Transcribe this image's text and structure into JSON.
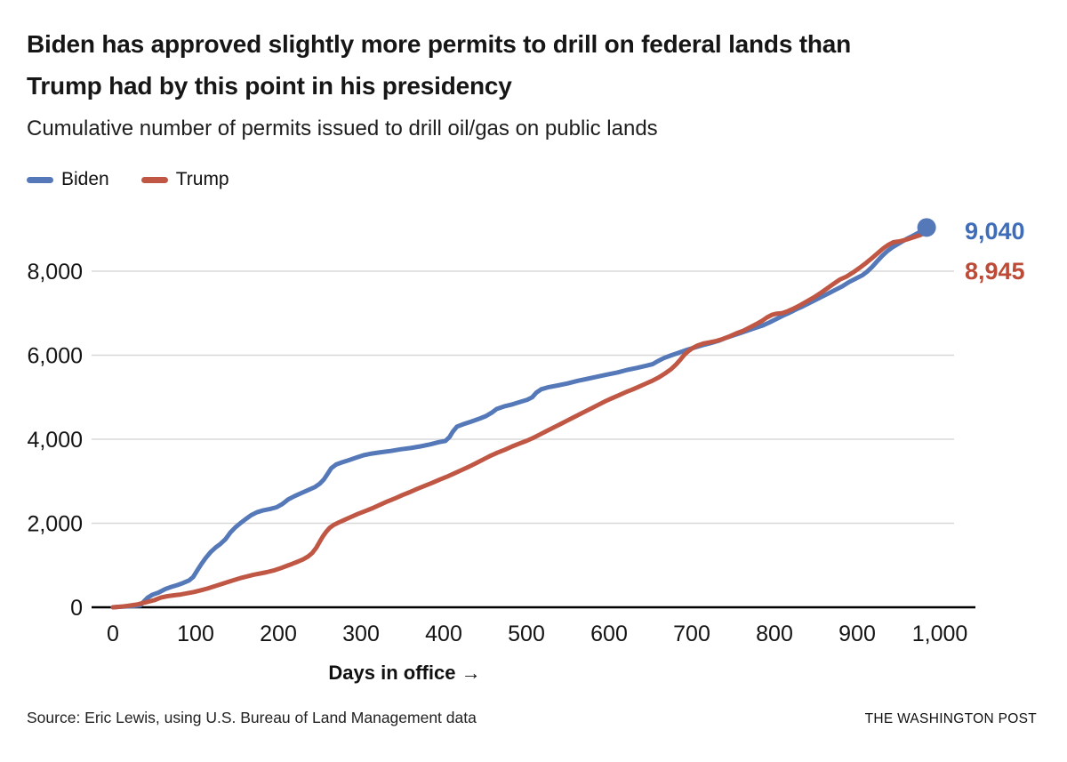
{
  "header": {
    "title": "Biden has approved slightly more permits to drill on federal lands than\nTrump had by this point in his presidency",
    "subtitle": "Cumulative number of permits issued to drill oil/gas on public lands"
  },
  "footer": {
    "source": "Source: Eric Lewis, using U.S. Bureau of Land Management data",
    "credit": "THE WASHINGTON POST"
  },
  "colors": {
    "gridline": "#d8d8d8",
    "axis": "#000000",
    "background": "#ffffff"
  },
  "chart_data": {
    "type": "line",
    "title": "Biden has approved slightly more permits to drill on federal lands than Trump had by this point in his presidency",
    "subtitle": "Cumulative number of permits issued to drill oil/gas on public lands",
    "xlabel": "Days in office →",
    "ylabel": "",
    "xlim": [
      0,
      1000
    ],
    "ylim": [
      0,
      9100
    ],
    "grid": "horizontal",
    "legend_position": "top-left",
    "x_ticks": [
      {
        "label": "0",
        "value": 0
      },
      {
        "label": "100",
        "value": 100
      },
      {
        "label": "200",
        "value": 200
      },
      {
        "label": "300",
        "value": 300
      },
      {
        "label": "400",
        "value": 400
      },
      {
        "label": "500",
        "value": 500
      },
      {
        "label": "600",
        "value": 600
      },
      {
        "label": "700",
        "value": 700
      },
      {
        "label": "800",
        "value": 800
      },
      {
        "label": "900",
        "value": 900
      },
      {
        "label": "1,000",
        "value": 1000
      }
    ],
    "y_ticks": [
      {
        "label": "0",
        "value": 0
      },
      {
        "label": "2,000",
        "value": 2000
      },
      {
        "label": "4,000",
        "value": 4000
      },
      {
        "label": "6,000",
        "value": 6000
      },
      {
        "label": "8,000",
        "value": 8000
      }
    ],
    "series": [
      {
        "name": "Biden",
        "color": "#5478b8",
        "label_color": "#3f6db8",
        "end_label": "9,040",
        "end_value": 9040,
        "end_dot": true,
        "points": [
          [
            0,
            0
          ],
          [
            12,
            15
          ],
          [
            24,
            30
          ],
          [
            33,
            45
          ],
          [
            37,
            130
          ],
          [
            42,
            230
          ],
          [
            48,
            300
          ],
          [
            55,
            350
          ],
          [
            60,
            400
          ],
          [
            64,
            440
          ],
          [
            70,
            480
          ],
          [
            78,
            530
          ],
          [
            85,
            580
          ],
          [
            92,
            640
          ],
          [
            97,
            720
          ],
          [
            102,
            880
          ],
          [
            107,
            1030
          ],
          [
            112,
            1170
          ],
          [
            118,
            1310
          ],
          [
            124,
            1420
          ],
          [
            130,
            1510
          ],
          [
            136,
            1620
          ],
          [
            142,
            1780
          ],
          [
            148,
            1900
          ],
          [
            154,
            2000
          ],
          [
            160,
            2090
          ],
          [
            167,
            2190
          ],
          [
            174,
            2260
          ],
          [
            182,
            2310
          ],
          [
            190,
            2340
          ],
          [
            198,
            2380
          ],
          [
            205,
            2460
          ],
          [
            212,
            2570
          ],
          [
            220,
            2650
          ],
          [
            228,
            2720
          ],
          [
            236,
            2790
          ],
          [
            244,
            2860
          ],
          [
            250,
            2940
          ],
          [
            255,
            3040
          ],
          [
            259,
            3160
          ],
          [
            264,
            3310
          ],
          [
            270,
            3400
          ],
          [
            277,
            3450
          ],
          [
            285,
            3500
          ],
          [
            294,
            3560
          ],
          [
            303,
            3620
          ],
          [
            313,
            3660
          ],
          [
            324,
            3690
          ],
          [
            336,
            3720
          ],
          [
            348,
            3760
          ],
          [
            360,
            3790
          ],
          [
            372,
            3830
          ],
          [
            384,
            3880
          ],
          [
            394,
            3930
          ],
          [
            402,
            3960
          ],
          [
            407,
            4050
          ],
          [
            411,
            4180
          ],
          [
            416,
            4300
          ],
          [
            424,
            4360
          ],
          [
            433,
            4420
          ],
          [
            442,
            4480
          ],
          [
            451,
            4550
          ],
          [
            458,
            4630
          ],
          [
            464,
            4720
          ],
          [
            473,
            4780
          ],
          [
            483,
            4830
          ],
          [
            493,
            4890
          ],
          [
            501,
            4940
          ],
          [
            507,
            5000
          ],
          [
            512,
            5110
          ],
          [
            518,
            5190
          ],
          [
            527,
            5240
          ],
          [
            538,
            5280
          ],
          [
            550,
            5330
          ],
          [
            562,
            5390
          ],
          [
            574,
            5440
          ],
          [
            586,
            5490
          ],
          [
            598,
            5540
          ],
          [
            610,
            5590
          ],
          [
            622,
            5650
          ],
          [
            634,
            5700
          ],
          [
            645,
            5750
          ],
          [
            653,
            5790
          ],
          [
            659,
            5860
          ],
          [
            666,
            5930
          ],
          [
            674,
            5990
          ],
          [
            683,
            6050
          ],
          [
            693,
            6120
          ],
          [
            703,
            6180
          ],
          [
            713,
            6240
          ],
          [
            723,
            6290
          ],
          [
            732,
            6340
          ],
          [
            741,
            6410
          ],
          [
            750,
            6470
          ],
          [
            759,
            6530
          ],
          [
            768,
            6590
          ],
          [
            777,
            6650
          ],
          [
            786,
            6710
          ],
          [
            794,
            6780
          ],
          [
            802,
            6860
          ],
          [
            810,
            6940
          ],
          [
            818,
            7010
          ],
          [
            826,
            7090
          ],
          [
            834,
            7160
          ],
          [
            842,
            7240
          ],
          [
            850,
            7320
          ],
          [
            858,
            7400
          ],
          [
            866,
            7480
          ],
          [
            874,
            7560
          ],
          [
            882,
            7640
          ],
          [
            890,
            7740
          ],
          [
            898,
            7820
          ],
          [
            906,
            7900
          ],
          [
            912,
            7990
          ],
          [
            918,
            8100
          ],
          [
            924,
            8230
          ],
          [
            930,
            8360
          ],
          [
            936,
            8470
          ],
          [
            942,
            8560
          ],
          [
            948,
            8630
          ],
          [
            954,
            8700
          ],
          [
            960,
            8770
          ],
          [
            966,
            8830
          ],
          [
            972,
            8890
          ],
          [
            978,
            8960
          ],
          [
            982,
            9010
          ],
          [
            984,
            9040
          ]
        ]
      },
      {
        "name": "Trump",
        "color": "#c05745",
        "label_color": "#bd4b38",
        "end_label": "8,945",
        "end_value": 8945,
        "end_dot": false,
        "points": [
          [
            0,
            0
          ],
          [
            10,
            15
          ],
          [
            20,
            40
          ],
          [
            30,
            70
          ],
          [
            40,
            120
          ],
          [
            50,
            170
          ],
          [
            58,
            230
          ],
          [
            66,
            265
          ],
          [
            74,
            285
          ],
          [
            82,
            305
          ],
          [
            90,
            335
          ],
          [
            98,
            365
          ],
          [
            106,
            405
          ],
          [
            114,
            445
          ],
          [
            122,
            495
          ],
          [
            130,
            545
          ],
          [
            138,
            595
          ],
          [
            146,
            645
          ],
          [
            154,
            695
          ],
          [
            162,
            735
          ],
          [
            170,
            775
          ],
          [
            178,
            805
          ],
          [
            186,
            835
          ],
          [
            194,
            875
          ],
          [
            202,
            925
          ],
          [
            210,
            985
          ],
          [
            217,
            1035
          ],
          [
            224,
            1090
          ],
          [
            230,
            1140
          ],
          [
            236,
            1210
          ],
          [
            241,
            1290
          ],
          [
            246,
            1420
          ],
          [
            250,
            1560
          ],
          [
            254,
            1690
          ],
          [
            258,
            1800
          ],
          [
            262,
            1890
          ],
          [
            267,
            1960
          ],
          [
            273,
            2020
          ],
          [
            280,
            2080
          ],
          [
            288,
            2150
          ],
          [
            296,
            2220
          ],
          [
            305,
            2290
          ],
          [
            314,
            2360
          ],
          [
            323,
            2440
          ],
          [
            332,
            2520
          ],
          [
            341,
            2590
          ],
          [
            350,
            2670
          ],
          [
            359,
            2740
          ],
          [
            368,
            2820
          ],
          [
            377,
            2890
          ],
          [
            386,
            2960
          ],
          [
            395,
            3040
          ],
          [
            404,
            3110
          ],
          [
            413,
            3190
          ],
          [
            422,
            3270
          ],
          [
            431,
            3350
          ],
          [
            440,
            3440
          ],
          [
            449,
            3530
          ],
          [
            457,
            3610
          ],
          [
            465,
            3680
          ],
          [
            474,
            3750
          ],
          [
            483,
            3830
          ],
          [
            492,
            3900
          ],
          [
            500,
            3960
          ],
          [
            508,
            4030
          ],
          [
            516,
            4110
          ],
          [
            524,
            4190
          ],
          [
            532,
            4270
          ],
          [
            540,
            4350
          ],
          [
            548,
            4430
          ],
          [
            556,
            4510
          ],
          [
            564,
            4590
          ],
          [
            572,
            4670
          ],
          [
            580,
            4750
          ],
          [
            588,
            4830
          ],
          [
            596,
            4910
          ],
          [
            604,
            4980
          ],
          [
            612,
            5050
          ],
          [
            620,
            5120
          ],
          [
            628,
            5180
          ],
          [
            636,
            5250
          ],
          [
            644,
            5320
          ],
          [
            652,
            5390
          ],
          [
            660,
            5470
          ],
          [
            668,
            5570
          ],
          [
            675,
            5670
          ],
          [
            681,
            5780
          ],
          [
            686,
            5890
          ],
          [
            691,
            6010
          ],
          [
            696,
            6100
          ],
          [
            701,
            6170
          ],
          [
            707,
            6230
          ],
          [
            714,
            6280
          ],
          [
            722,
            6310
          ],
          [
            730,
            6340
          ],
          [
            738,
            6390
          ],
          [
            746,
            6450
          ],
          [
            754,
            6520
          ],
          [
            762,
            6580
          ],
          [
            770,
            6660
          ],
          [
            778,
            6740
          ],
          [
            785,
            6820
          ],
          [
            791,
            6900
          ],
          [
            797,
            6960
          ],
          [
            803,
            6990
          ],
          [
            809,
            7000
          ],
          [
            815,
            7040
          ],
          [
            823,
            7110
          ],
          [
            831,
            7190
          ],
          [
            839,
            7280
          ],
          [
            847,
            7370
          ],
          [
            855,
            7470
          ],
          [
            863,
            7580
          ],
          [
            871,
            7690
          ],
          [
            879,
            7800
          ],
          [
            887,
            7870
          ],
          [
            895,
            7970
          ],
          [
            903,
            8080
          ],
          [
            911,
            8200
          ],
          [
            919,
            8330
          ],
          [
            926,
            8450
          ],
          [
            932,
            8550
          ],
          [
            938,
            8630
          ],
          [
            944,
            8690
          ],
          [
            951,
            8710
          ],
          [
            959,
            8750
          ],
          [
            967,
            8800
          ],
          [
            975,
            8850
          ],
          [
            981,
            8900
          ],
          [
            986,
            8945
          ]
        ]
      }
    ]
  }
}
